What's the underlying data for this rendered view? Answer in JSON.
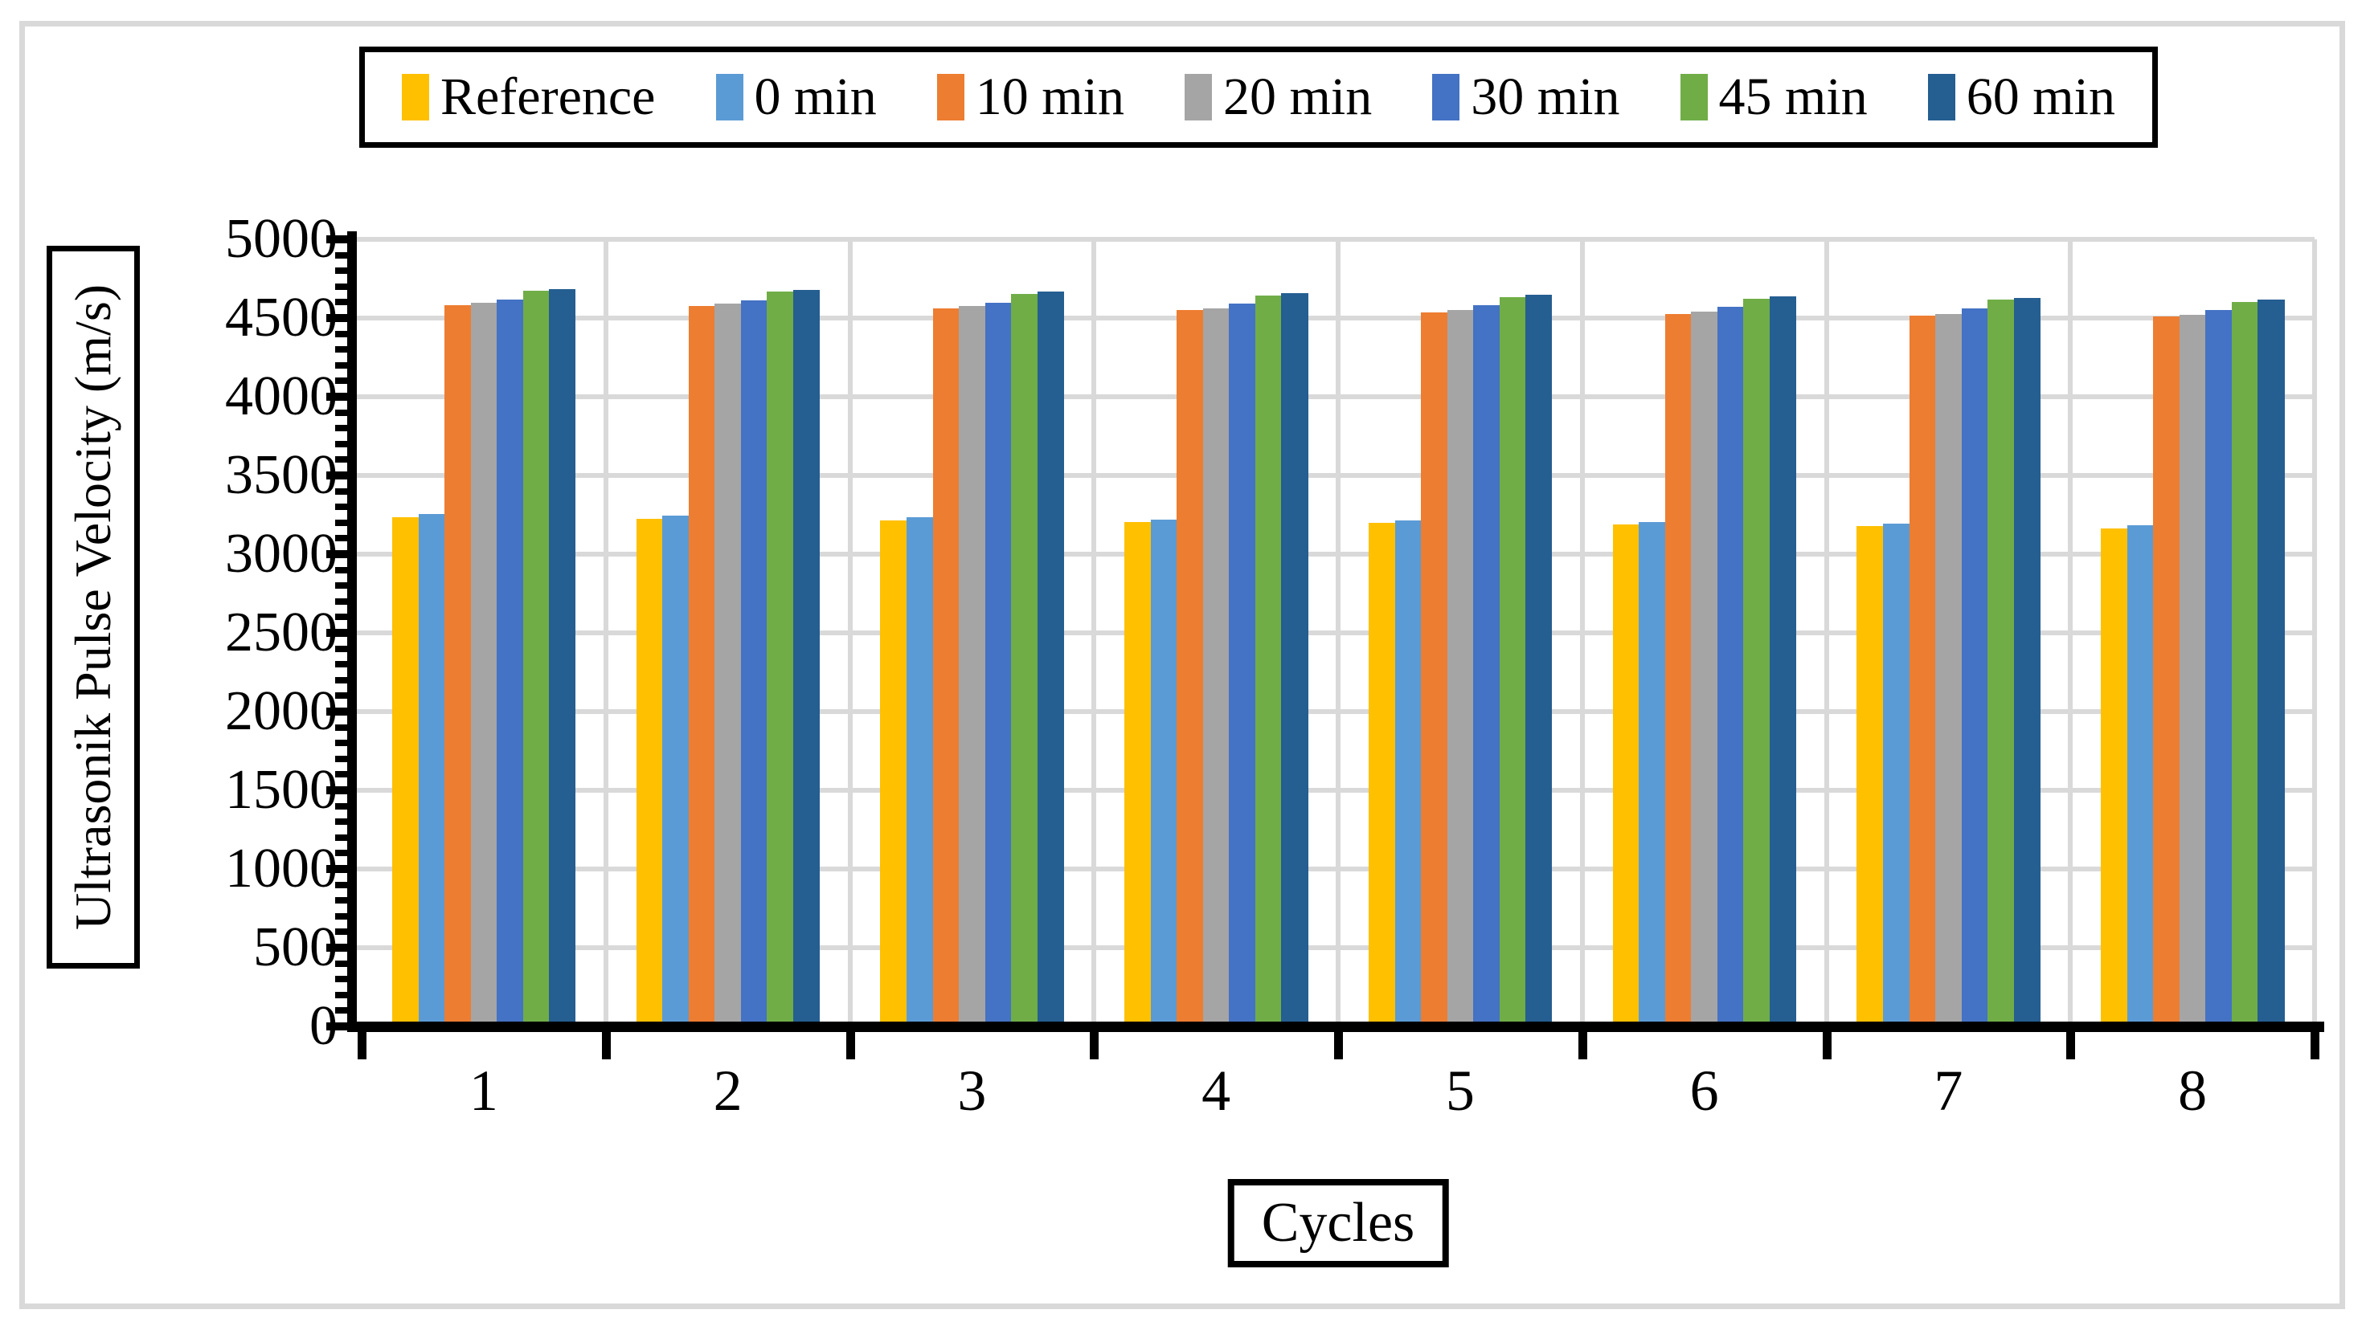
{
  "figure": {
    "background": "#FFFFFF",
    "outer_border_color": "#D9D9D9",
    "gridline_color": "#D9D9D9",
    "axis_color": "#000000"
  },
  "chart_data": {
    "type": "bar",
    "title": "",
    "xlabel": "Cycles",
    "ylabel": "Ultrasonik Pulse Velocity (m/s)",
    "categories": [
      "1",
      "2",
      "3",
      "4",
      "5",
      "6",
      "7",
      "8"
    ],
    "series": [
      {
        "name": "Reference",
        "color": "#FFC000",
        "values": [
          3235,
          3225,
          3215,
          3205,
          3200,
          3190,
          3180,
          3165
        ]
      },
      {
        "name": "0 min",
        "color": "#5B9BD5",
        "values": [
          3255,
          3245,
          3235,
          3220,
          3215,
          3205,
          3195,
          3185
        ]
      },
      {
        "name": "10 min",
        "color": "#ED7D31",
        "values": [
          4580,
          4575,
          4560,
          4550,
          4535,
          4525,
          4515,
          4510
        ]
      },
      {
        "name": "20 min",
        "color": "#A5A5A5",
        "values": [
          4595,
          4590,
          4575,
          4560,
          4550,
          4540,
          4525,
          4520
        ]
      },
      {
        "name": "30 min",
        "color": "#4472C4",
        "values": [
          4615,
          4610,
          4595,
          4590,
          4580,
          4570,
          4560,
          4550
        ]
      },
      {
        "name": "45 min",
        "color": "#70AD47",
        "values": [
          4675,
          4670,
          4655,
          4645,
          4635,
          4625,
          4615,
          4600
        ]
      },
      {
        "name": "60 min",
        "color": "#255E91",
        "values": [
          4685,
          4680,
          4670,
          4660,
          4650,
          4640,
          4630,
          4615
        ]
      }
    ],
    "ylim": [
      0,
      5000
    ],
    "ytick_step": 500,
    "yticks": [
      "5000",
      "4500",
      "4000",
      "3500",
      "3000",
      "2500",
      "2000",
      "1500",
      "1000",
      "500",
      "0"
    ],
    "grid": true,
    "legend_position": "top"
  }
}
